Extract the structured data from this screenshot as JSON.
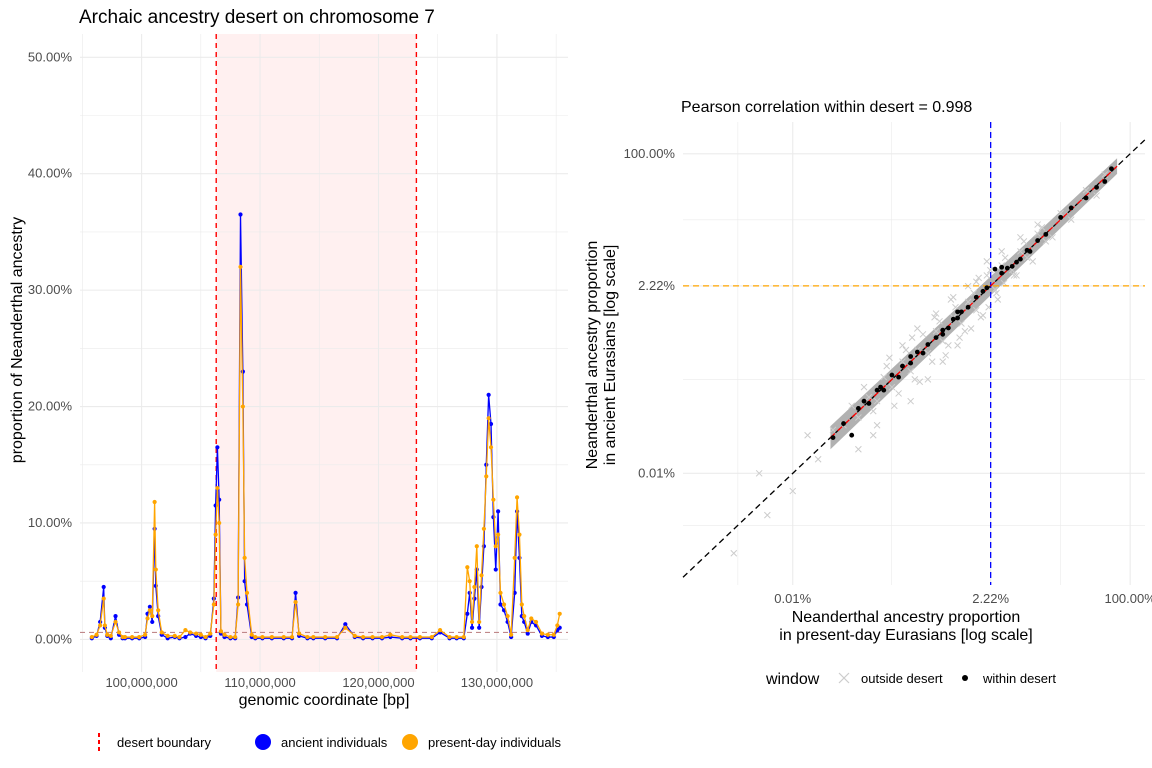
{
  "colors": {
    "ancient": "#0000ff",
    "present_day": "#ffa500",
    "desert_boundary": "#ff0000",
    "desert_fill": "#fff0f0",
    "avg_line": "#c0888a",
    "grid": "#ebebeb",
    "outside_points": "#cccccc",
    "within_points": "#000000",
    "ribbon": "#a8a8a8",
    "vline": "#0000ff",
    "hline": "#ffa500",
    "diagonal": "#000000",
    "fit_line": "#ff0000"
  },
  "legend_left": {
    "items": [
      {
        "key": "desert_boundary",
        "label": "desert boundary",
        "shape": "dashed-line"
      },
      {
        "key": "ancient",
        "label": "ancient individuals",
        "shape": "dot"
      },
      {
        "key": "present_day",
        "label": "present-day individuals",
        "shape": "dot"
      }
    ]
  },
  "legend_right": {
    "title": "window",
    "items": [
      {
        "key": "outside",
        "label": "outside desert",
        "shape": "cross"
      },
      {
        "key": "within",
        "label": "within desert",
        "shape": "dot"
      }
    ]
  },
  "chart_data": [
    {
      "type": "line",
      "title": "Archaic ancestry desert on chromosome 7",
      "xlabel": "genomic coordinate [bp]",
      "ylabel": "proportion of Neanderthal ancestry",
      "xlim": [
        94800000,
        136000000
      ],
      "ylim": [
        -0.028,
        0.52
      ],
      "xticks": [
        100000000,
        110000000,
        120000000,
        130000000
      ],
      "xtick_labels": [
        "100,000,000",
        "110,000,000",
        "120,000,000",
        "130,000,000"
      ],
      "yticks": [
        0,
        0.1,
        0.2,
        0.3,
        0.4,
        0.5
      ],
      "ytick_labels": [
        "0.00%",
        "10.00%",
        "20.00%",
        "30.00%",
        "40.00%",
        "50.00%"
      ],
      "grid": true,
      "legend": "bottom",
      "desert": {
        "start": 106300000,
        "end": 123200000
      },
      "average_line_y": 0.006,
      "series": [
        {
          "name": "ancient individuals",
          "x": [
            95800000,
            96200000,
            96500000,
            96800000,
            96900000,
            97100000,
            97400000,
            97800000,
            98100000,
            98400000,
            98600000,
            99200000,
            99800000,
            100300000,
            100500000,
            100700000,
            100900000,
            101100000,
            101200000,
            101400000,
            101700000,
            102200000,
            102800000,
            103200000,
            103700000,
            104100000,
            104600000,
            105000000,
            105400000,
            105800000,
            106100000,
            106250000,
            106400000,
            106550000,
            106700000,
            107000000,
            107500000,
            107900000,
            108150000,
            108350000,
            108550000,
            108700000,
            108900000,
            109300000,
            109600000,
            110200000,
            111000000,
            112000000,
            112700000,
            113000000,
            113300000,
            114000000,
            114500000,
            115500000,
            116500000,
            117200000,
            118000000,
            118700000,
            119500000,
            120300000,
            121000000,
            122000000,
            122700000,
            123500000,
            124500000,
            125200000,
            126000000,
            126600000,
            127200000,
            127500000,
            127700000,
            127900000,
            128100000,
            128300000,
            128500000,
            128700000,
            128900000,
            129100000,
            129300000,
            129500000,
            129700000,
            129900000,
            130100000,
            130300000,
            130600000,
            130900000,
            131200000,
            131500000,
            131700000,
            131900000,
            132100000,
            132300000,
            132600000,
            132900000,
            133300000,
            133800000,
            134300000,
            134800000,
            135100000,
            135300000
          ],
          "y": [
            0.001,
            0.003,
            0.015,
            0.045,
            0.01,
            0.003,
            0.001,
            0.02,
            0.004,
            0.001,
            0.001,
            0.001,
            0.001,
            0.002,
            0.022,
            0.028,
            0.015,
            0.095,
            0.046,
            0.02,
            0.004,
            0.001,
            0.002,
            0.001,
            0.002,
            0.005,
            0.003,
            0.002,
            0.001,
            0.003,
            0.035,
            0.115,
            0.165,
            0.12,
            0.005,
            0.002,
            0.001,
            0.001,
            0.036,
            0.365,
            0.23,
            0.05,
            0.03,
            0.002,
            0.001,
            0.001,
            0.001,
            0.001,
            0.001,
            0.04,
            0.003,
            0.001,
            0.001,
            0.001,
            0.001,
            0.013,
            0.002,
            0.001,
            0.001,
            0.001,
            0.002,
            0.001,
            0.001,
            0.001,
            0.001,
            0.006,
            0.001,
            0.001,
            0.001,
            0.022,
            0.04,
            0.01,
            0.035,
            0.06,
            0.01,
            0.045,
            0.08,
            0.15,
            0.21,
            0.185,
            0.105,
            0.06,
            0.11,
            0.03,
            0.025,
            0.015,
            0.002,
            0.04,
            0.11,
            0.07,
            0.02,
            0.015,
            0.005,
            0.015,
            0.012,
            0.003,
            0.002,
            0.002,
            0.008,
            0.01
          ]
        },
        {
          "name": "present-day individuals",
          "x": [
            95800000,
            96200000,
            96500000,
            96800000,
            96900000,
            97100000,
            97400000,
            97800000,
            98100000,
            98400000,
            98600000,
            99200000,
            99800000,
            100300000,
            100500000,
            100700000,
            100900000,
            101100000,
            101200000,
            101400000,
            101700000,
            102200000,
            102800000,
            103200000,
            103700000,
            104100000,
            104600000,
            105000000,
            105400000,
            105800000,
            106100000,
            106250000,
            106400000,
            106550000,
            106700000,
            107000000,
            107500000,
            107900000,
            108150000,
            108350000,
            108550000,
            108700000,
            108900000,
            109300000,
            109600000,
            110200000,
            111000000,
            112000000,
            112700000,
            113000000,
            113300000,
            114000000,
            114500000,
            115500000,
            116500000,
            117200000,
            118000000,
            118700000,
            119500000,
            120300000,
            121000000,
            122000000,
            122700000,
            123500000,
            124500000,
            125200000,
            126000000,
            126600000,
            127200000,
            127500000,
            127700000,
            127900000,
            128100000,
            128300000,
            128500000,
            128700000,
            128900000,
            129100000,
            129300000,
            129500000,
            129700000,
            129900000,
            130100000,
            130300000,
            130600000,
            130900000,
            131200000,
            131500000,
            131700000,
            131900000,
            132100000,
            132300000,
            132600000,
            132900000,
            133300000,
            133800000,
            134300000,
            134800000,
            135100000,
            135300000
          ],
          "y": [
            0.002,
            0.004,
            0.012,
            0.035,
            0.012,
            0.004,
            0.003,
            0.015,
            0.006,
            0.002,
            0.002,
            0.002,
            0.002,
            0.004,
            0.018,
            0.025,
            0.02,
            0.118,
            0.06,
            0.025,
            0.006,
            0.003,
            0.003,
            0.002,
            0.008,
            0.006,
            0.005,
            0.004,
            0.002,
            0.005,
            0.03,
            0.09,
            0.13,
            0.1,
            0.007,
            0.004,
            0.002,
            0.002,
            0.03,
            0.32,
            0.2,
            0.07,
            0.04,
            0.004,
            0.002,
            0.002,
            0.002,
            0.002,
            0.002,
            0.032,
            0.005,
            0.002,
            0.002,
            0.002,
            0.002,
            0.01,
            0.003,
            0.002,
            0.002,
            0.002,
            0.004,
            0.002,
            0.002,
            0.002,
            0.002,
            0.008,
            0.002,
            0.002,
            0.002,
            0.062,
            0.05,
            0.015,
            0.045,
            0.08,
            0.015,
            0.055,
            0.095,
            0.14,
            0.19,
            0.165,
            0.12,
            0.08,
            0.09,
            0.04,
            0.03,
            0.02,
            0.004,
            0.07,
            0.122,
            0.09,
            0.03,
            0.02,
            0.008,
            0.018,
            0.015,
            0.005,
            0.004,
            0.004,
            0.012,
            0.022
          ]
        }
      ]
    },
    {
      "type": "scatter",
      "subtitle": "Pearson correlation within desert = 0.998",
      "xlabel_lines": [
        "Neanderthal ancestry proportion",
        "in present-day Eurasians [log scale]"
      ],
      "ylabel_lines": [
        "Neanderthal ancestry proportion",
        "in ancient Eurasians [log scale]"
      ],
      "scale": "log10",
      "xlim": [
        5e-06,
        1.5
      ],
      "ylim": [
        4e-06,
        2.5
      ],
      "xticks": [
        0.0001,
        0.0222,
        1.0
      ],
      "xtick_labels": [
        "0.01%",
        "2.22%",
        "100.00%"
      ],
      "yticks": [
        0.0001,
        0.0222,
        1.0
      ],
      "ytick_labels": [
        "0.01%",
        "2.22%",
        "100.00%"
      ],
      "grid": true,
      "legend": "bottom",
      "vline_x": 0.0222,
      "hline_y": 0.0222,
      "diagonal": "y = x",
      "within_desert": {
        "x": [
          0.0003,
          0.0004,
          0.0005,
          0.0006,
          0.0008,
          0.001,
          0.0012,
          0.0015,
          0.0018,
          0.002,
          0.0025,
          0.003,
          0.0035,
          0.004,
          0.005,
          0.006,
          0.007,
          0.008,
          0.009,
          0.01,
          0.012,
          0.015,
          0.018,
          0.02,
          0.025,
          0.03,
          0.035,
          0.04,
          0.05,
          0.06,
          0.08,
          0.1,
          0.15,
          0.2,
          0.3,
          0.4,
          0.5,
          0.6,
          0.0007,
          0.0011,
          0.0025,
          0.006,
          0.009,
          0.03,
          0.045,
          0.065
        ],
        "y": [
          0.00028,
          0.00042,
          0.0003,
          0.00065,
          0.00075,
          0.0011,
          0.0011,
          0.0017,
          0.0016,
          0.0022,
          0.0024,
          0.0033,
          0.0032,
          0.0041,
          0.005,
          0.0062,
          0.0066,
          0.0085,
          0.0088,
          0.0105,
          0.012,
          0.016,
          0.019,
          0.021,
          0.036,
          0.038,
          0.037,
          0.039,
          0.048,
          0.062,
          0.082,
          0.098,
          0.16,
          0.21,
          0.28,
          0.38,
          0.45,
          0.65,
          0.0008,
          0.0012,
          0.0029,
          0.0055,
          0.0105,
          0.032,
          0.044,
          0.06
        ]
      },
      "outside_desert": {
        "x": [
          2e-05,
          4e-05,
          5e-05,
          0.0001,
          0.0002,
          0.00015,
          0.0003,
          0.0004,
          0.0005,
          0.0006,
          0.0008,
          0.001,
          0.0012,
          0.0015,
          0.002,
          0.0025,
          0.003,
          0.004,
          0.005,
          0.006,
          0.008,
          0.01,
          0.012,
          0.015,
          0.02,
          0.025,
          0.03,
          0.04,
          0.05,
          0.06,
          0.08,
          0.1,
          0.15,
          0.2,
          0.3,
          0.4,
          0.5,
          0.0007,
          0.0009,
          0.0013,
          0.0018,
          0.0022,
          0.0028,
          0.0035,
          0.0045,
          0.0055,
          0.007,
          0.0085,
          0.011,
          0.014,
          0.017,
          0.022,
          0.027,
          0.033,
          0.045,
          0.055,
          0.07,
          0.09,
          0.12,
          0.0025,
          0.004,
          0.006,
          0.009,
          0.013,
          0.018,
          0.002,
          0.003,
          0.005,
          0.008,
          0.012,
          0.016,
          0.001,
          0.0016,
          0.0032,
          0.0065,
          0.0095,
          0.0014,
          0.0026,
          0.0048,
          0.0075,
          0.015,
          0.021,
          0.026,
          0.032,
          0.042,
          0.0006,
          0.0009,
          0.02,
          0.03,
          0.05,
          0.08
        ],
        "y": [
          1e-05,
          0.0001,
          3e-05,
          6e-05,
          0.00015,
          0.0003,
          0.00035,
          0.0004,
          0.0007,
          0.0005,
          0.0009,
          0.0008,
          0.0016,
          0.0012,
          0.0025,
          0.0019,
          0.0035,
          0.0032,
          0.006,
          0.0045,
          0.009,
          0.0075,
          0.014,
          0.011,
          0.03,
          0.02,
          0.04,
          0.035,
          0.06,
          0.05,
          0.1,
          0.08,
          0.18,
          0.15,
          0.35,
          0.3,
          0.55,
          0.0012,
          0.0006,
          0.0022,
          0.001,
          0.0035,
          0.0015,
          0.0055,
          0.0025,
          0.008,
          0.004,
          0.012,
          0.006,
          0.018,
          0.009,
          0.035,
          0.015,
          0.05,
          0.03,
          0.08,
          0.045,
          0.12,
          0.09,
          0.0008,
          0.0015,
          0.0025,
          0.004,
          0.0065,
          0.0095,
          0.004,
          0.0065,
          0.01,
          0.016,
          0.022,
          0.028,
          0.0004,
          0.0007,
          0.0014,
          0.003,
          0.005,
          0.0028,
          0.005,
          0.009,
          0.015,
          0.025,
          0.012,
          0.018,
          0.024,
          0.03,
          0.0002,
          0.0003,
          0.045,
          0.06,
          0.09,
          0.13
        ]
      },
      "fit_line": {
        "x": [
          0.00028,
          0.7
        ],
        "y": [
          0.00028,
          0.7
        ]
      },
      "ribbon": {
        "x": [
          0.00028,
          0.7
        ],
        "y_low": [
          0.0002,
          0.56
        ],
        "y_high": [
          0.00039,
          0.88
        ]
      }
    }
  ]
}
